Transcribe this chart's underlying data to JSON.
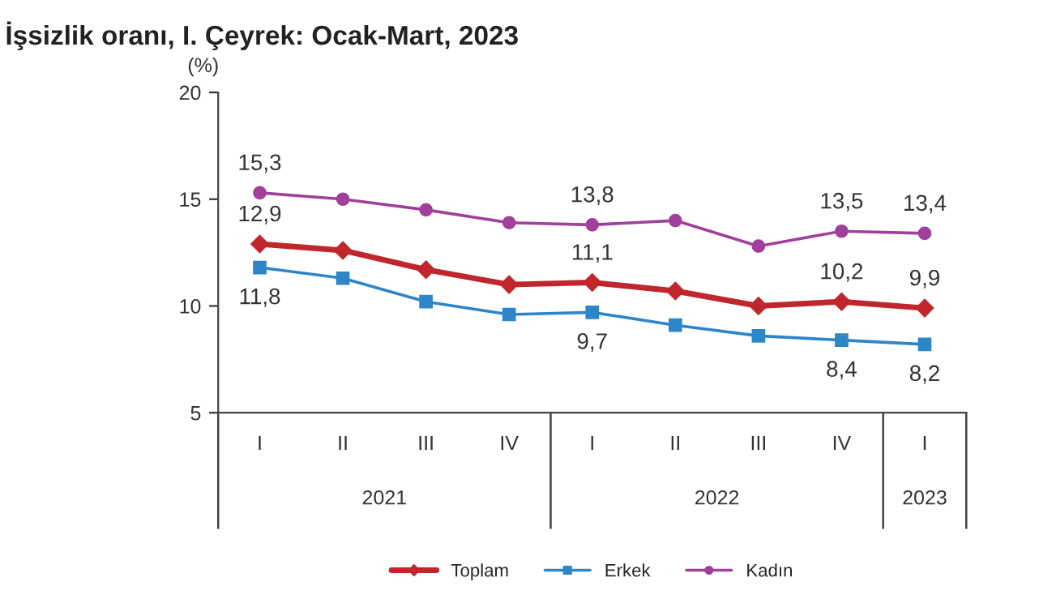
{
  "chart_data": {
    "type": "line",
    "title": "İşsizlik oranı, I. Çeyrek: Ocak-Mart, 2023",
    "ylabel": "(%)",
    "categories": [
      "I",
      "II",
      "III",
      "IV",
      "I",
      "II",
      "III",
      "IV",
      "I"
    ],
    "annotations": [
      "2021",
      "2022",
      "2023"
    ],
    "series": [
      {
        "name": "Toplam",
        "color": "#c0272d",
        "marker": "diamond",
        "values": [
          12.9,
          12.6,
          11.7,
          11.0,
          11.1,
          10.7,
          10.0,
          10.2,
          9.9
        ],
        "value_labels": [
          "12,9",
          null,
          null,
          null,
          "11,1",
          null,
          null,
          "10,2",
          "9,9"
        ]
      },
      {
        "name": "Erkek",
        "color": "#2e86c8",
        "marker": "square",
        "values": [
          11.8,
          11.3,
          10.2,
          9.6,
          9.7,
          9.1,
          8.6,
          8.4,
          8.2
        ],
        "value_labels": [
          "11,8",
          null,
          null,
          null,
          "9,7",
          null,
          null,
          "8,4",
          "8,2"
        ]
      },
      {
        "name": "Kadın",
        "color": "#a0409a",
        "marker": "circle",
        "values": [
          15.3,
          15.0,
          14.5,
          13.9,
          13.8,
          14.0,
          12.8,
          13.5,
          13.4
        ],
        "value_labels": [
          "15,3",
          null,
          null,
          null,
          "13,8",
          null,
          null,
          "13,5",
          "13,4"
        ]
      }
    ],
    "ylim": [
      5,
      20
    ],
    "yticks": [
      5,
      10,
      15,
      20
    ],
    "grid": false,
    "legend": "bottom"
  }
}
